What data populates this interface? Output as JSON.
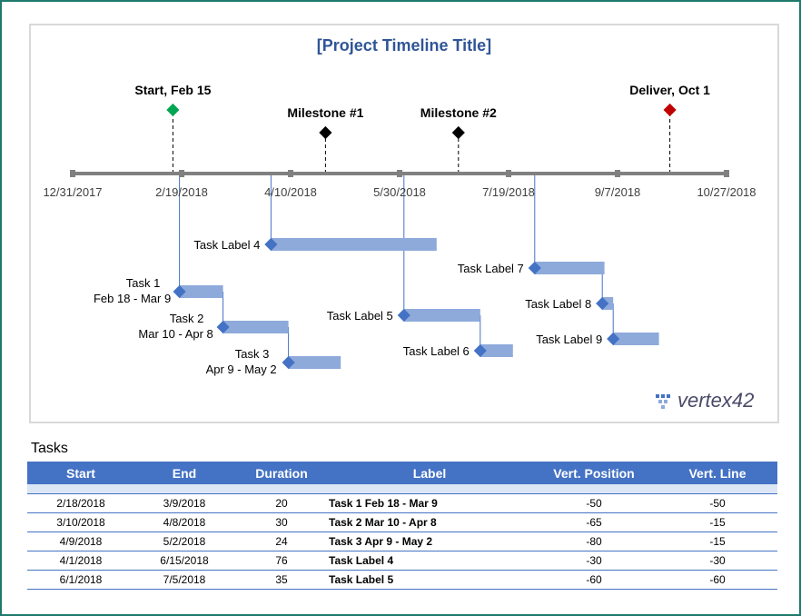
{
  "chart_data": {
    "type": "timeline",
    "title": "[Project Timeline Title]",
    "axis": {
      "start": "2017-12-31",
      "end": "2018-10-27",
      "tick_labels": [
        "12/31/2017",
        "2/19/2018",
        "4/10/2018",
        "5/30/2018",
        "7/19/2018",
        "9/7/2018",
        "10/27/2018"
      ]
    },
    "milestones": [
      {
        "label": "Start, Feb 15",
        "date": "2018-02-15",
        "height": 70,
        "color": "#00a651"
      },
      {
        "label": "Milestone #1",
        "date": "2018-04-26",
        "height": 45,
        "color": "#000000"
      },
      {
        "label": "Milestone #2",
        "date": "2018-06-26",
        "height": 45,
        "color": "#000000"
      },
      {
        "label": "Deliver, Oct 1",
        "date": "2018-10-01",
        "height": 70,
        "color": "#c00000"
      }
    ],
    "tasks": [
      {
        "label": "Task 1",
        "sublabel": "Feb 18 - Mar 9",
        "start": "2018-02-18",
        "duration": 20,
        "position": -50,
        "vert_line": -50
      },
      {
        "label": "Task 2",
        "sublabel": "Mar 10 - Apr 8",
        "start": "2018-03-10",
        "duration": 30,
        "position": -65,
        "vert_line": -15
      },
      {
        "label": "Task 3",
        "sublabel": "Apr 9 - May 2",
        "start": "2018-04-09",
        "duration": 24,
        "position": -80,
        "vert_line": -15
      },
      {
        "label": "Task Label 4",
        "sublabel": "",
        "start": "2018-04-01",
        "duration": 76,
        "position": -30,
        "vert_line": -30
      },
      {
        "label": "Task Label 5",
        "sublabel": "",
        "start": "2018-06-01",
        "duration": 35,
        "position": -60,
        "vert_line": -60
      },
      {
        "label": "Task Label 6",
        "sublabel": "",
        "start": "2018-07-06",
        "duration": 15,
        "position": -75,
        "vert_line": -15
      },
      {
        "label": "Task Label 7",
        "sublabel": "",
        "start": "2018-07-31",
        "duration": 32,
        "position": -40,
        "vert_line": -40
      },
      {
        "label": "Task Label 8",
        "sublabel": "",
        "start": "2018-08-31",
        "duration": 5,
        "position": -55,
        "vert_line": -15
      },
      {
        "label": "Task Label 9",
        "sublabel": "",
        "start": "2018-09-05",
        "duration": 21,
        "position": -70,
        "vert_line": -15
      }
    ],
    "colors": {
      "bar": "#8eaadb",
      "diamond": "#4472c4",
      "axis": "#808080",
      "title": "#2f5597"
    }
  },
  "logo_text": "vertex42",
  "tasks_section": {
    "heading": "Tasks",
    "columns": [
      "Start",
      "End",
      "Duration",
      "Label",
      "Vert. Position",
      "Vert. Line"
    ],
    "rows": [
      [
        "2/18/2018",
        "3/9/2018",
        "20",
        "Task 1  Feb 18 - Mar 9",
        "-50",
        "-50"
      ],
      [
        "3/10/2018",
        "4/8/2018",
        "30",
        "Task 2  Mar 10 - Apr 8",
        "-65",
        "-15"
      ],
      [
        "4/9/2018",
        "5/2/2018",
        "24",
        "Task 3  Apr 9 - May 2",
        "-80",
        "-15"
      ],
      [
        "4/1/2018",
        "6/15/2018",
        "76",
        "Task Label 4",
        "-30",
        "-30"
      ],
      [
        "6/1/2018",
        "7/5/2018",
        "35",
        "Task Label 5",
        "-60",
        "-60"
      ]
    ]
  }
}
